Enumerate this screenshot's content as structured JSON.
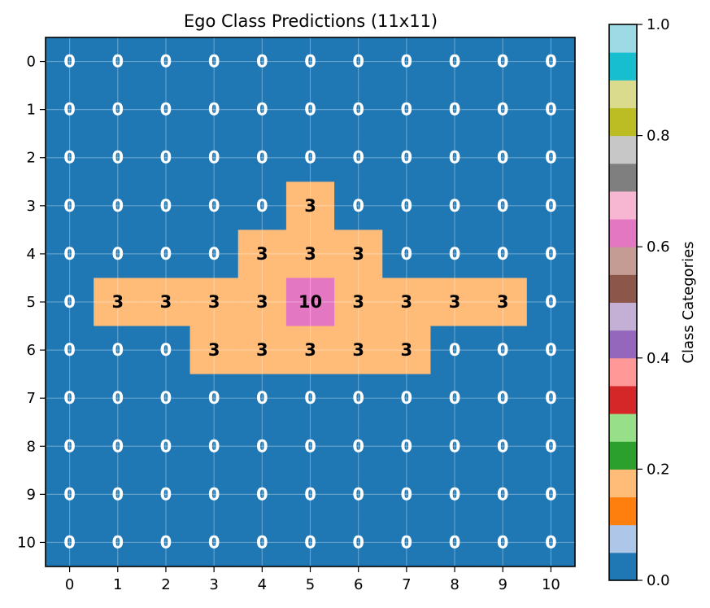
{
  "chart_data": {
    "type": "heatmap",
    "title": "Ego Class Predictions (11x11)",
    "xlabel": "",
    "ylabel": "",
    "x_ticks": [
      "0",
      "1",
      "2",
      "3",
      "4",
      "5",
      "6",
      "7",
      "8",
      "9",
      "10"
    ],
    "y_ticks": [
      "0",
      "1",
      "2",
      "3",
      "4",
      "5",
      "6",
      "7",
      "8",
      "9",
      "10"
    ],
    "grid": true,
    "values": [
      [
        0,
        0,
        0,
        0,
        0,
        0,
        0,
        0,
        0,
        0,
        0
      ],
      [
        0,
        0,
        0,
        0,
        0,
        0,
        0,
        0,
        0,
        0,
        0
      ],
      [
        0,
        0,
        0,
        0,
        0,
        0,
        0,
        0,
        0,
        0,
        0
      ],
      [
        0,
        0,
        0,
        0,
        0,
        3,
        0,
        0,
        0,
        0,
        0
      ],
      [
        0,
        0,
        0,
        0,
        3,
        3,
        3,
        0,
        0,
        0,
        0
      ],
      [
        0,
        3,
        3,
        3,
        3,
        10,
        3,
        3,
        3,
        3,
        0
      ],
      [
        0,
        0,
        0,
        3,
        3,
        3,
        3,
        3,
        0,
        0,
        0
      ],
      [
        0,
        0,
        0,
        0,
        0,
        0,
        0,
        0,
        0,
        0,
        0
      ],
      [
        0,
        0,
        0,
        0,
        0,
        0,
        0,
        0,
        0,
        0,
        0
      ],
      [
        0,
        0,
        0,
        0,
        0,
        0,
        0,
        0,
        0,
        0,
        0
      ],
      [
        0,
        0,
        0,
        0,
        0,
        0,
        0,
        0,
        0,
        0,
        0
      ]
    ],
    "colorbar": {
      "label": "Class Categories",
      "range": [
        0,
        1
      ],
      "tick_labels": [
        "0.0",
        "0.2",
        "0.4",
        "0.6",
        "0.8",
        "1.0"
      ],
      "tick_values": [
        0,
        0.2,
        0.4,
        0.6,
        0.8,
        1.0
      ],
      "colormap": [
        "#1f77b4",
        "#aec7e8",
        "#ff7f0e",
        "#ffbb78",
        "#2ca02c",
        "#98df8a",
        "#d62728",
        "#ff9896",
        "#9467bd",
        "#c5b0d5",
        "#8c564b",
        "#c49c94",
        "#e377c2",
        "#f7b6d2",
        "#7f7f7f",
        "#c7c7c7",
        "#bcbd22",
        "#dbdb8d",
        "#17becf",
        "#9edae5"
      ]
    },
    "class_colors": {
      "0": "#1f77b4",
      "3": "#ffbb78",
      "10": "#e377c2"
    }
  }
}
